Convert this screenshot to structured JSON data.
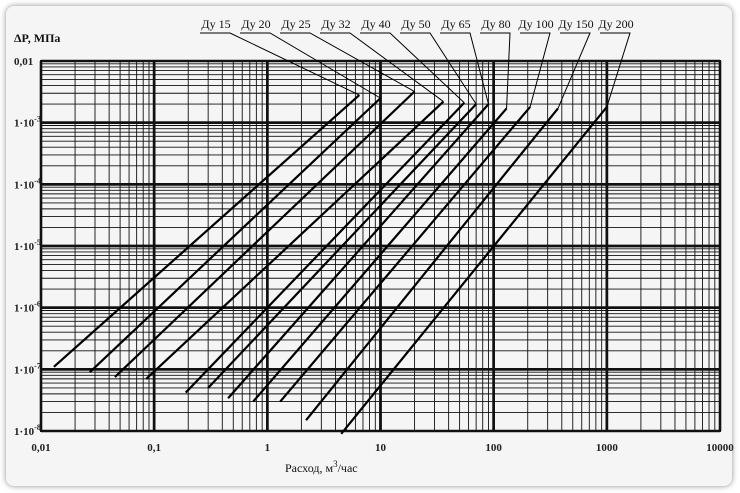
{
  "chart_data": {
    "type": "line",
    "xscale": "log",
    "yscale": "log",
    "xlim": [
      0.01,
      10000
    ],
    "ylim": [
      1e-08,
      0.01
    ],
    "grid": true,
    "xlabel_text": "Расход, м",
    "xlabel_sup": "3",
    "xlabel_suffix": "/час",
    "ylabel": "ΔP, МПа",
    "x_ticks": [
      {
        "value": 0.01,
        "label": "0,01"
      },
      {
        "value": 0.1,
        "label": "0,1"
      },
      {
        "value": 1,
        "label": "1"
      },
      {
        "value": 10,
        "label": "10"
      },
      {
        "value": 100,
        "label": "100"
      },
      {
        "value": 1000,
        "label": "1000"
      },
      {
        "value": 10000,
        "label": "10000"
      }
    ],
    "y_ticks": [
      {
        "value": 0.01,
        "base": "0,01",
        "exp": ""
      },
      {
        "value": 0.001,
        "base": "1·10",
        "exp": "-3"
      },
      {
        "value": 0.0001,
        "base": "1·10",
        "exp": "-4"
      },
      {
        "value": 1e-05,
        "base": "1·10",
        "exp": "-5"
      },
      {
        "value": 1e-06,
        "base": "1·10",
        "exp": "-6"
      },
      {
        "value": 1e-07,
        "base": "1·10",
        "exp": "-7"
      },
      {
        "value": 1e-08,
        "base": "1·10",
        "exp": "-8"
      }
    ],
    "series": [
      {
        "name": "Ду 15",
        "x": [
          0.013,
          6.5
        ],
        "y": [
          1.1e-07,
          0.0028
        ]
      },
      {
        "name": "Ду 20",
        "x": [
          0.027,
          10
        ],
        "y": [
          9e-08,
          0.0025
        ]
      },
      {
        "name": "Ду 25",
        "x": [
          0.045,
          20
        ],
        "y": [
          7.5e-08,
          0.0032
        ]
      },
      {
        "name": "Ду 32",
        "x": [
          0.085,
          36
        ],
        "y": [
          7e-08,
          0.0022
        ]
      },
      {
        "name": "Ду 40",
        "x": [
          0.19,
          55
        ],
        "y": [
          4.2e-08,
          0.0021
        ]
      },
      {
        "name": "Ду 50",
        "x": [
          0.3,
          70
        ],
        "y": [
          5e-08,
          0.002
        ]
      },
      {
        "name": "Ду 65",
        "x": [
          0.45,
          90
        ],
        "y": [
          3.4e-08,
          0.002
        ]
      },
      {
        "name": "Ду 80",
        "x": [
          0.75,
          130
        ],
        "y": [
          3e-08,
          0.0017
        ]
      },
      {
        "name": "Ду 100",
        "x": [
          1.3,
          210
        ],
        "y": [
          3e-08,
          0.0018
        ]
      },
      {
        "name": "Ду 150",
        "x": [
          2.2,
          370
        ],
        "y": [
          1.5e-08,
          0.0017
        ]
      },
      {
        "name": "Ду 200",
        "x": [
          4.5,
          1000
        ],
        "y": [
          9e-09,
          0.0018
        ]
      }
    ]
  }
}
